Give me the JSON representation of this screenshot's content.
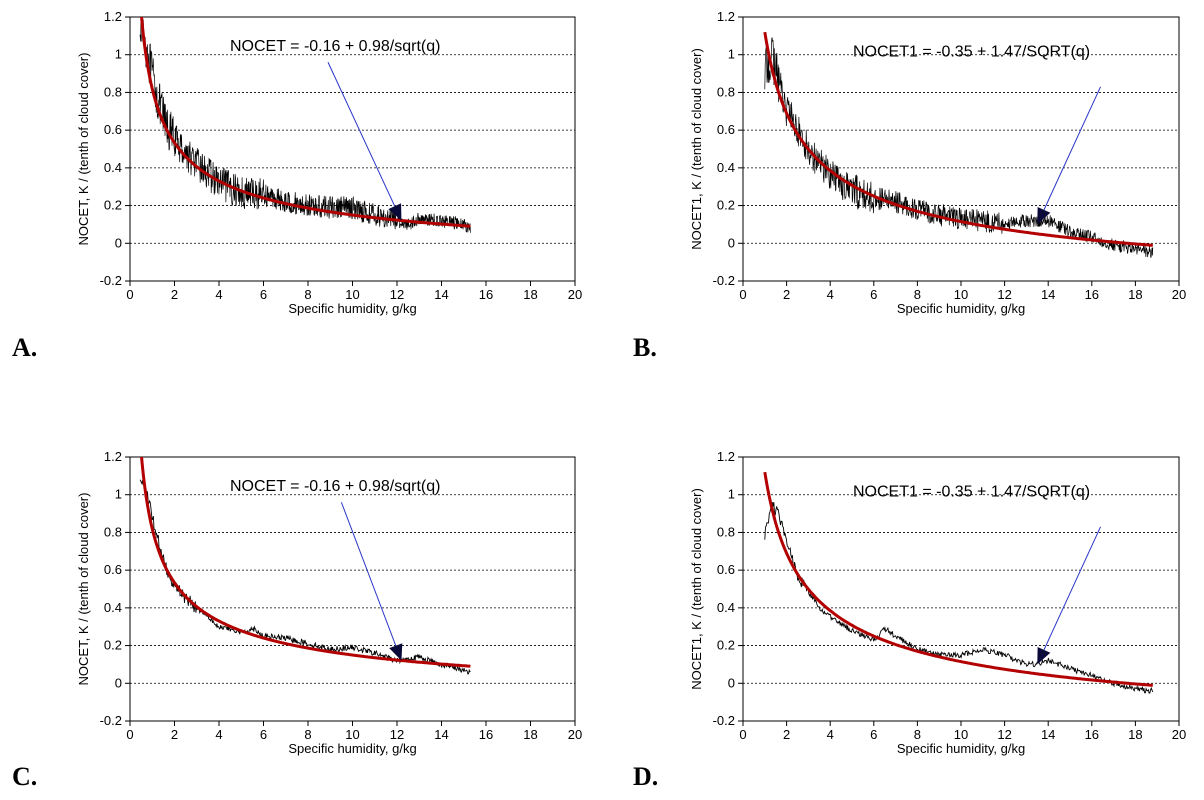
{
  "colors": {
    "noisy": "#000000",
    "fit": "#b30000",
    "arrow": "#2a35c8",
    "arrowhead": "#0a0a3a",
    "grid": "#000000"
  },
  "chart_data": [
    {
      "panel": "A.",
      "type": "line",
      "xlabel": "Specific humidity, g/kg",
      "ylabel": "NOCET, K / (tenth of cloud cover)",
      "xlim": [
        0,
        20
      ],
      "ylim": [
        -0.2,
        1.2
      ],
      "xticks": [
        "0",
        "2",
        "4",
        "6",
        "8",
        "10",
        "12",
        "14",
        "16",
        "18",
        "20"
      ],
      "yticks": [
        "-0.2",
        "0",
        "0.2",
        "0.4",
        "0.6",
        "0.8",
        "1",
        "1.2"
      ],
      "grid": "horizontal dotted",
      "annotation": "NOCET = -0.16 + 0.98/sqrt(q)",
      "fit": {
        "a": -0.16,
        "b": 0.98,
        "x_range": [
          0.45,
          15.3
        ]
      },
      "observed_noise": "high",
      "observed_smoothed": {
        "x": [
          0.45,
          0.8,
          1.2,
          1.6,
          2,
          2.5,
          3,
          3.5,
          4,
          5,
          6,
          7,
          8,
          9,
          10,
          11,
          12,
          12.5,
          13,
          14,
          15,
          15.3
        ],
        "y": [
          1.2,
          1.0,
          0.78,
          0.63,
          0.55,
          0.48,
          0.42,
          0.37,
          0.32,
          0.27,
          0.26,
          0.22,
          0.2,
          0.19,
          0.19,
          0.15,
          0.12,
          0.1,
          0.13,
          0.12,
          0.1,
          0.08
        ]
      },
      "arrow": {
        "from": [
          8.9,
          0.96
        ],
        "to": [
          12.2,
          0.12
        ]
      }
    },
    {
      "panel": "B.",
      "type": "line",
      "xlabel": "Specific humidity, g/kg",
      "ylabel": "NOCET1, K / (tenth of cloud cover)",
      "xlim": [
        0,
        20
      ],
      "ylim": [
        -0.2,
        1.2
      ],
      "xticks": [
        "0",
        "2",
        "4",
        "6",
        "8",
        "10",
        "12",
        "14",
        "16",
        "18",
        "20"
      ],
      "yticks": [
        "-0.2",
        "0",
        "0.2",
        "0.4",
        "0.6",
        "0.8",
        "1",
        "1.2"
      ],
      "grid": "horizontal dotted",
      "annotation": "NOCET1 = -0.35 + 1.47/SQRT(q)",
      "fit": {
        "a": -0.35,
        "b": 1.47,
        "x_range": [
          1.0,
          18.8
        ]
      },
      "observed_noise": "high",
      "observed_smoothed": {
        "x": [
          1.0,
          1.3,
          1.6,
          2,
          2.5,
          3,
          3.5,
          4,
          5,
          6,
          7,
          8,
          9,
          10,
          11,
          12,
          13,
          13.5,
          14,
          15,
          16,
          17,
          18,
          18.8
        ],
        "y": [
          0.9,
          1.0,
          0.88,
          0.72,
          0.6,
          0.5,
          0.43,
          0.37,
          0.28,
          0.24,
          0.22,
          0.18,
          0.15,
          0.13,
          0.12,
          0.1,
          0.12,
          0.12,
          0.12,
          0.06,
          0.03,
          -0.01,
          -0.03,
          -0.05
        ]
      },
      "arrow": {
        "from": [
          16.4,
          0.83
        ],
        "to": [
          13.5,
          0.1
        ]
      }
    },
    {
      "panel": "C.",
      "type": "line",
      "xlabel": "Specific humidity, g/kg",
      "ylabel": "NOCET, K / (tenth of cloud cover)",
      "xlim": [
        0,
        20
      ],
      "ylim": [
        -0.2,
        1.2
      ],
      "xticks": [
        "0",
        "2",
        "4",
        "6",
        "8",
        "10",
        "12",
        "14",
        "16",
        "18",
        "20"
      ],
      "yticks": [
        "-0.2",
        "0",
        "0.2",
        "0.4",
        "0.6",
        "0.8",
        "1",
        "1.2"
      ],
      "grid": "horizontal dotted",
      "annotation": "NOCET = -0.16 + 0.98/sqrt(q)",
      "fit": {
        "a": -0.16,
        "b": 0.98,
        "x_range": [
          0.45,
          15.3
        ]
      },
      "observed_noise": "low",
      "observed_smoothed": {
        "x": [
          0.45,
          0.8,
          1.2,
          1.6,
          2,
          2.5,
          3,
          3.5,
          4,
          5,
          5.6,
          6,
          7,
          8,
          9,
          10,
          11,
          12,
          13,
          14,
          15,
          15.3
        ],
        "y": [
          1.1,
          0.98,
          0.78,
          0.62,
          0.52,
          0.45,
          0.4,
          0.36,
          0.3,
          0.27,
          0.29,
          0.25,
          0.24,
          0.21,
          0.18,
          0.19,
          0.16,
          0.12,
          0.14,
          0.1,
          0.07,
          0.06
        ]
      },
      "arrow": {
        "from": [
          9.5,
          0.96
        ],
        "to": [
          12.2,
          0.12
        ]
      }
    },
    {
      "panel": "D.",
      "type": "line",
      "xlabel": "Specific humidity, g/kg",
      "ylabel": "NOCET1, K / (tenth of cloud cover)",
      "xlim": [
        0,
        20
      ],
      "ylim": [
        -0.2,
        1.2
      ],
      "xticks": [
        "0",
        "2",
        "4",
        "6",
        "8",
        "10",
        "12",
        "14",
        "16",
        "18",
        "20"
      ],
      "yticks": [
        "-0.2",
        "0",
        "0.2",
        "0.4",
        "0.6",
        "0.8",
        "1",
        "1.2"
      ],
      "grid": "horizontal dotted",
      "annotation": "NOCET1 = -0.35 + 1.47/SQRT(q)",
      "fit": {
        "a": -0.35,
        "b": 1.47,
        "x_range": [
          1.0,
          18.8
        ]
      },
      "observed_noise": "low",
      "observed_smoothed": {
        "x": [
          1.0,
          1.3,
          1.6,
          2,
          2.5,
          3,
          3.5,
          4,
          5,
          6,
          6.5,
          7,
          8,
          9,
          10,
          11,
          12,
          13,
          13.5,
          14,
          15,
          16,
          17,
          18,
          18.8
        ],
        "y": [
          0.78,
          0.95,
          0.9,
          0.75,
          0.58,
          0.48,
          0.4,
          0.35,
          0.28,
          0.23,
          0.29,
          0.25,
          0.18,
          0.15,
          0.15,
          0.18,
          0.15,
          0.1,
          0.1,
          0.12,
          0.08,
          0.04,
          0.0,
          -0.03,
          -0.04
        ]
      },
      "arrow": {
        "from": [
          16.4,
          0.83
        ],
        "to": [
          13.5,
          0.1
        ]
      }
    }
  ]
}
